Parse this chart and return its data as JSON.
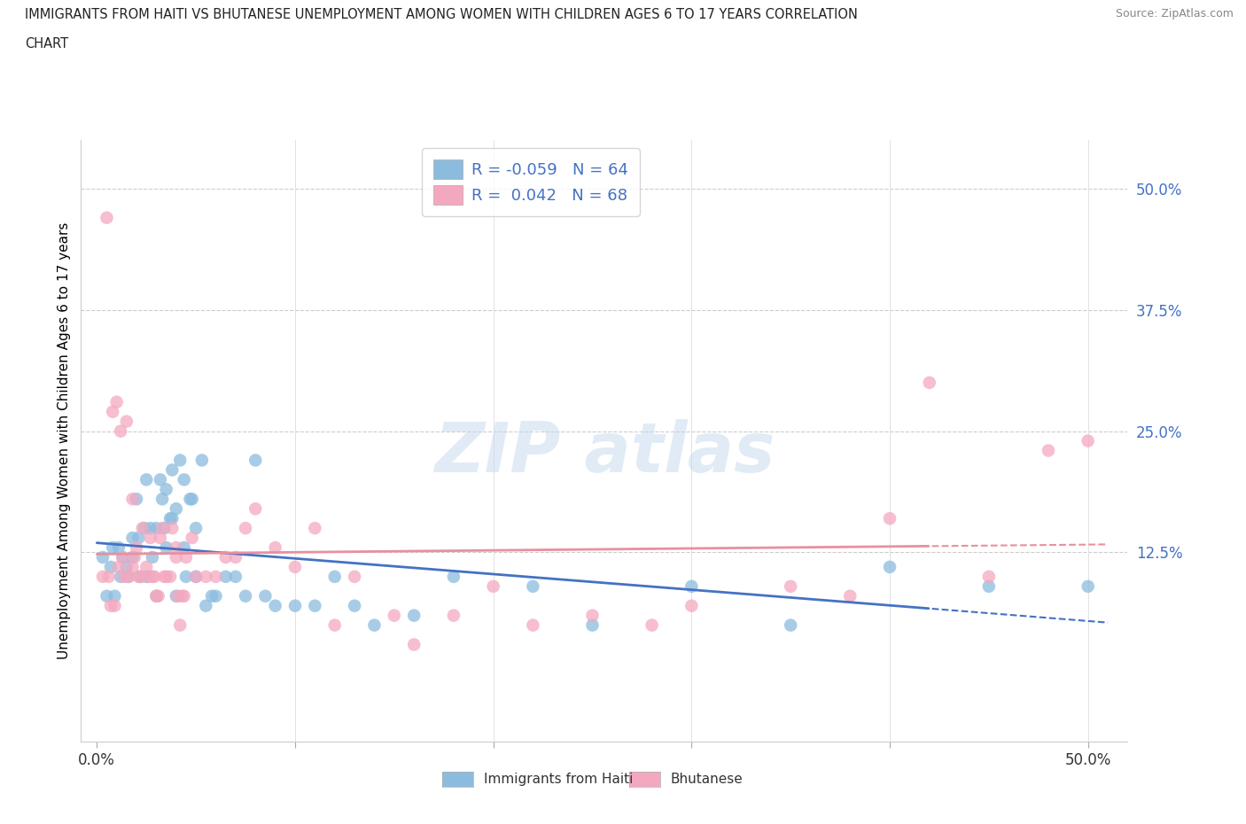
{
  "title_line1": "IMMIGRANTS FROM HAITI VS BHUTANESE UNEMPLOYMENT AMONG WOMEN WITH CHILDREN AGES 6 TO 17 YEARS CORRELATION",
  "title_line2": "CHART",
  "source": "Source: ZipAtlas.com",
  "ylabel": "Unemployment Among Women with Children Ages 6 to 17 years",
  "haiti_color": "#8bbcde",
  "bhutan_color": "#f4a8bf",
  "haiti_line_color": "#4472c4",
  "bhutan_line_color": "#e8909f",
  "haiti_R": -0.059,
  "haiti_N": 64,
  "bhutan_R": 0.042,
  "bhutan_N": 68,
  "xlim": [
    -0.008,
    0.52
  ],
  "ylim": [
    -0.07,
    0.55
  ],
  "legend_label_haiti": "Immigrants from Haiti",
  "legend_label_bhutan": "Bhutanese",
  "haiti_x": [
    0.003,
    0.005,
    0.007,
    0.008,
    0.009,
    0.011,
    0.012,
    0.013,
    0.015,
    0.016,
    0.018,
    0.018,
    0.02,
    0.021,
    0.022,
    0.024,
    0.025,
    0.025,
    0.027,
    0.028,
    0.03,
    0.03,
    0.032,
    0.033,
    0.034,
    0.035,
    0.035,
    0.037,
    0.038,
    0.038,
    0.04,
    0.04,
    0.042,
    0.044,
    0.044,
    0.045,
    0.047,
    0.048,
    0.05,
    0.05,
    0.053,
    0.055,
    0.058,
    0.06,
    0.065,
    0.07,
    0.075,
    0.08,
    0.085,
    0.09,
    0.1,
    0.11,
    0.12,
    0.13,
    0.14,
    0.16,
    0.18,
    0.22,
    0.25,
    0.3,
    0.35,
    0.4,
    0.45,
    0.5
  ],
  "haiti_y": [
    0.12,
    0.08,
    0.11,
    0.13,
    0.08,
    0.13,
    0.1,
    0.12,
    0.11,
    0.1,
    0.14,
    0.12,
    0.18,
    0.14,
    0.1,
    0.15,
    0.1,
    0.2,
    0.15,
    0.12,
    0.08,
    0.15,
    0.2,
    0.18,
    0.15,
    0.13,
    0.19,
    0.16,
    0.16,
    0.21,
    0.08,
    0.17,
    0.22,
    0.13,
    0.2,
    0.1,
    0.18,
    0.18,
    0.15,
    0.1,
    0.22,
    0.07,
    0.08,
    0.08,
    0.1,
    0.1,
    0.08,
    0.22,
    0.08,
    0.07,
    0.07,
    0.07,
    0.1,
    0.07,
    0.05,
    0.06,
    0.1,
    0.09,
    0.05,
    0.09,
    0.05,
    0.11,
    0.09,
    0.09
  ],
  "bhutan_x": [
    0.003,
    0.005,
    0.006,
    0.007,
    0.008,
    0.009,
    0.01,
    0.011,
    0.012,
    0.013,
    0.014,
    0.015,
    0.016,
    0.018,
    0.018,
    0.019,
    0.02,
    0.021,
    0.022,
    0.023,
    0.025,
    0.026,
    0.027,
    0.028,
    0.029,
    0.03,
    0.031,
    0.032,
    0.033,
    0.034,
    0.035,
    0.037,
    0.038,
    0.04,
    0.04,
    0.041,
    0.042,
    0.043,
    0.044,
    0.045,
    0.048,
    0.05,
    0.055,
    0.06,
    0.065,
    0.07,
    0.075,
    0.08,
    0.09,
    0.1,
    0.11,
    0.12,
    0.13,
    0.15,
    0.16,
    0.18,
    0.2,
    0.22,
    0.25,
    0.28,
    0.3,
    0.35,
    0.4,
    0.42,
    0.45,
    0.48,
    0.5,
    0.38
  ],
  "bhutan_y": [
    0.1,
    0.47,
    0.1,
    0.07,
    0.27,
    0.07,
    0.28,
    0.11,
    0.25,
    0.12,
    0.1,
    0.26,
    0.1,
    0.11,
    0.18,
    0.12,
    0.13,
    0.1,
    0.1,
    0.15,
    0.11,
    0.1,
    0.14,
    0.1,
    0.1,
    0.08,
    0.08,
    0.14,
    0.15,
    0.1,
    0.1,
    0.1,
    0.15,
    0.12,
    0.13,
    0.08,
    0.05,
    0.08,
    0.08,
    0.12,
    0.14,
    0.1,
    0.1,
    0.1,
    0.12,
    0.12,
    0.15,
    0.17,
    0.13,
    0.11,
    0.15,
    0.05,
    0.1,
    0.06,
    0.03,
    0.06,
    0.09,
    0.05,
    0.06,
    0.05,
    0.07,
    0.09,
    0.16,
    0.3,
    0.1,
    0.23,
    0.24,
    0.08
  ]
}
